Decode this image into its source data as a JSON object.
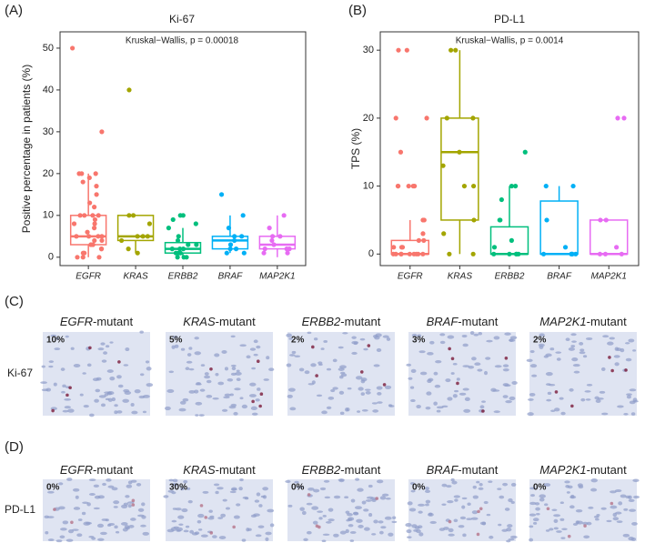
{
  "chart_data": [
    {
      "type": "box",
      "panel_label": "(A)",
      "title": "Ki-67",
      "annotation": "Kruskal−Wallis, p = 0.00018",
      "y_label": "Positive percentage in patients (%)",
      "categories": [
        "EGFR",
        "KRAS",
        "ERBB2",
        "BRAF",
        "MAP2K1"
      ],
      "colors": [
        "#F8766D",
        "#A3A500",
        "#00BF7D",
        "#00B0F6",
        "#E76BF3"
      ],
      "ylim": [
        -2,
        53.9
      ],
      "yticks": [
        0,
        10,
        20,
        30,
        40,
        50
      ],
      "boxes": [
        {
          "whisker_low": 0,
          "q1": 3,
          "median": 5,
          "q3": 10,
          "whisker_high": 20,
          "points": [
            50,
            30,
            20,
            20,
            20,
            19,
            18,
            17,
            15,
            13,
            12,
            10,
            10,
            10,
            10,
            9,
            8,
            8,
            7,
            6,
            5,
            5,
            5,
            5,
            4,
            4,
            3,
            3,
            2,
            2,
            1,
            1,
            0,
            0,
            0
          ]
        },
        {
          "whisker_low": 1,
          "q1": 4,
          "median": 5,
          "q3": 10,
          "whisker_high": 10,
          "points": [
            40,
            10,
            10,
            8,
            5,
            5,
            5,
            4,
            2,
            1
          ]
        },
        {
          "whisker_low": 0,
          "q1": 1,
          "median": 2,
          "q3": 3.5,
          "whisker_high": 7,
          "points": [
            10,
            10,
            9,
            8,
            7,
            5,
            4,
            3,
            3,
            2,
            2,
            2,
            1,
            1,
            1,
            0,
            0,
            0
          ]
        },
        {
          "whisker_low": 1,
          "q1": 2,
          "median": 4,
          "q3": 5,
          "whisker_high": 10,
          "points": [
            15,
            10,
            7,
            5,
            5,
            4,
            3,
            2,
            2,
            1,
            1
          ]
        },
        {
          "whisker_low": 0,
          "q1": 2,
          "median": 3,
          "q3": 5,
          "whisker_high": 10,
          "points": [
            10,
            7,
            5,
            5,
            4,
            3,
            2,
            2,
            2,
            1,
            1
          ]
        }
      ]
    },
    {
      "type": "box",
      "panel_label": "(B)",
      "title": "PD-L1",
      "annotation": "Kruskal−Wallis, p = 0.0014",
      "y_label": "TPS (%)",
      "categories": [
        "EGFR",
        "KRAS",
        "ERBB2",
        "BRAF",
        "MAP2K1"
      ],
      "colors": [
        "#F8766D",
        "#A3A500",
        "#00BF7D",
        "#00B0F6",
        "#E76BF3"
      ],
      "ylim": [
        -1.7,
        32.7
      ],
      "yticks": [
        0,
        10,
        20,
        30
      ],
      "boxes": [
        {
          "whisker_low": 0,
          "q1": 0,
          "median": 0,
          "q3": 2,
          "whisker_high": 5,
          "points": [
            30,
            30,
            20,
            20,
            15,
            10,
            10,
            10,
            10,
            10,
            5,
            5,
            5,
            3,
            2,
            2,
            1,
            1,
            1,
            0,
            0,
            0,
            0,
            0,
            0,
            0,
            0,
            0
          ]
        },
        {
          "whisker_low": 0,
          "q1": 5,
          "median": 15,
          "q3": 20,
          "whisker_high": 30,
          "points": [
            30,
            30,
            20,
            20,
            15,
            13,
            10,
            10,
            5,
            3,
            0,
            0
          ]
        },
        {
          "whisker_low": 0,
          "q1": 0,
          "median": 0,
          "q3": 4,
          "whisker_high": 10,
          "points": [
            15,
            10,
            10,
            8,
            5,
            5,
            2,
            1,
            0,
            0,
            0,
            0,
            0
          ]
        },
        {
          "whisker_low": 0,
          "q1": 0,
          "median": 0,
          "q3": 7.8,
          "whisker_high": 10,
          "points": [
            10,
            10,
            5,
            1,
            0,
            0,
            0,
            0,
            0
          ]
        },
        {
          "whisker_low": 0,
          "q1": 0,
          "median": 0,
          "q3": 5,
          "whisker_high": 5,
          "points": [
            20,
            20,
            5,
            5,
            1,
            0,
            0,
            0
          ]
        }
      ]
    }
  ],
  "image_panels": [
    {
      "panel_label": "(C)",
      "row_label": "Ki-67",
      "columns": [
        {
          "gene": "EGFR",
          "suffix": "-mutant",
          "percent": "10%"
        },
        {
          "gene": "KRAS",
          "suffix": "-mutant",
          "percent": "5%"
        },
        {
          "gene": "ERBB2",
          "suffix": "-mutant",
          "percent": "2%"
        },
        {
          "gene": "BRAF",
          "suffix": "-mutant",
          "percent": "3%"
        },
        {
          "gene": "MAP2K1",
          "suffix": "-mutant",
          "percent": "2%"
        }
      ]
    },
    {
      "panel_label": "(D)",
      "row_label": "PD-L1",
      "columns": [
        {
          "gene": "EGFR",
          "suffix": "-mutant",
          "percent": "0%"
        },
        {
          "gene": "KRAS",
          "suffix": "-mutant",
          "percent": "30%"
        },
        {
          "gene": "ERBB2",
          "suffix": "-mutant",
          "percent": "0%"
        },
        {
          "gene": "BRAF",
          "suffix": "-mutant",
          "percent": "0%"
        },
        {
          "gene": "MAP2K1",
          "suffix": "-mutant",
          "percent": "0%"
        }
      ]
    }
  ]
}
